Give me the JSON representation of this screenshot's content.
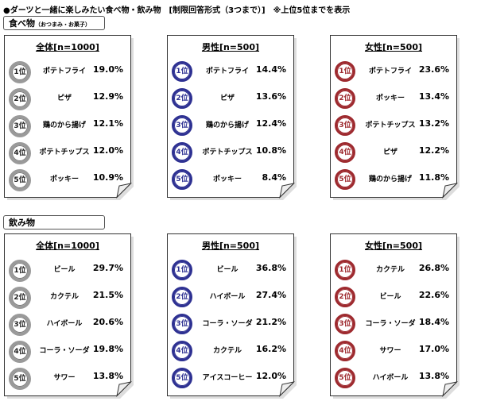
{
  "title": "●ダーツと一緒に楽しみたい食べ物・飲み物　[制限回答形式（3つまで）]　※上位5位までを表示",
  "sections": [
    {
      "label": "食べ物",
      "sublabel": "（おつまみ・お菓子）",
      "panels": [
        {
          "header": "全体[n=1000]",
          "rows": [
            {
              "rank": "1位",
              "item": "ポテトフライ",
              "value": "19.0%"
            },
            {
              "rank": "2位",
              "item": "ピザ",
              "value": "12.9%"
            },
            {
              "rank": "3位",
              "item": "鶏のから揚げ",
              "value": "12.1%"
            },
            {
              "rank": "4位",
              "item": "ポテトチップス",
              "value": "12.0%"
            },
            {
              "rank": "5位",
              "item": "ポッキー",
              "value": "10.9%"
            }
          ]
        },
        {
          "header": "男性[n=500]",
          "rows": [
            {
              "rank": "1位",
              "item": "ポテトフライ",
              "value": "14.4%"
            },
            {
              "rank": "2位",
              "item": "ピザ",
              "value": "13.6%"
            },
            {
              "rank": "3位",
              "item": "鶏のから揚げ",
              "value": "12.4%"
            },
            {
              "rank": "4位",
              "item": "ポテトチップス",
              "value": "10.8%"
            },
            {
              "rank": "5位",
              "item": "ポッキー",
              "value": "8.4%"
            }
          ]
        },
        {
          "header": "女性[n=500]",
          "rows": [
            {
              "rank": "1位",
              "item": "ポテトフライ",
              "value": "23.6%"
            },
            {
              "rank": "2位",
              "item": "ポッキー",
              "value": "13.4%"
            },
            {
              "rank": "3位",
              "item": "ポテトチップス",
              "value": "13.2%"
            },
            {
              "rank": "4位",
              "item": "ピザ",
              "value": "12.2%"
            },
            {
              "rank": "5位",
              "item": "鶏のから揚げ",
              "value": "11.8%"
            }
          ]
        }
      ]
    },
    {
      "label": "飲み物",
      "panels": [
        {
          "header": "全体[n=1000]",
          "rows": [
            {
              "rank": "1位",
              "item": "ビール",
              "value": "29.7%"
            },
            {
              "rank": "2位",
              "item": "カクテル",
              "value": "21.5%"
            },
            {
              "rank": "3位",
              "item": "ハイボール",
              "value": "20.6%"
            },
            {
              "rank": "4位",
              "item": "コーラ・ソーダ",
              "value": "19.8%"
            },
            {
              "rank": "5位",
              "item": "サワー",
              "value": "13.8%"
            }
          ]
        },
        {
          "header": "男性[n=500]",
          "rows": [
            {
              "rank": "1位",
              "item": "ビール",
              "value": "36.8%"
            },
            {
              "rank": "2位",
              "item": "ハイボール",
              "value": "27.4%"
            },
            {
              "rank": "3位",
              "item": "コーラ・ソーダ",
              "value": "21.2%"
            },
            {
              "rank": "4位",
              "item": "カクテル",
              "value": "16.2%"
            },
            {
              "rank": "5位",
              "item": "アイスコーヒー",
              "value": "12.0%"
            }
          ]
        },
        {
          "header": "女性[n=500]",
          "rows": [
            {
              "rank": "1位",
              "item": "カクテル",
              "value": "26.8%"
            },
            {
              "rank": "2位",
              "item": "ビール",
              "value": "22.6%"
            },
            {
              "rank": "3位",
              "item": "コーラ・ソーダ",
              "value": "18.4%"
            },
            {
              "rank": "4位",
              "item": "サワー",
              "value": "17.0%"
            },
            {
              "rank": "5位",
              "item": "ハイボール",
              "value": "13.8%"
            }
          ]
        }
      ]
    }
  ]
}
